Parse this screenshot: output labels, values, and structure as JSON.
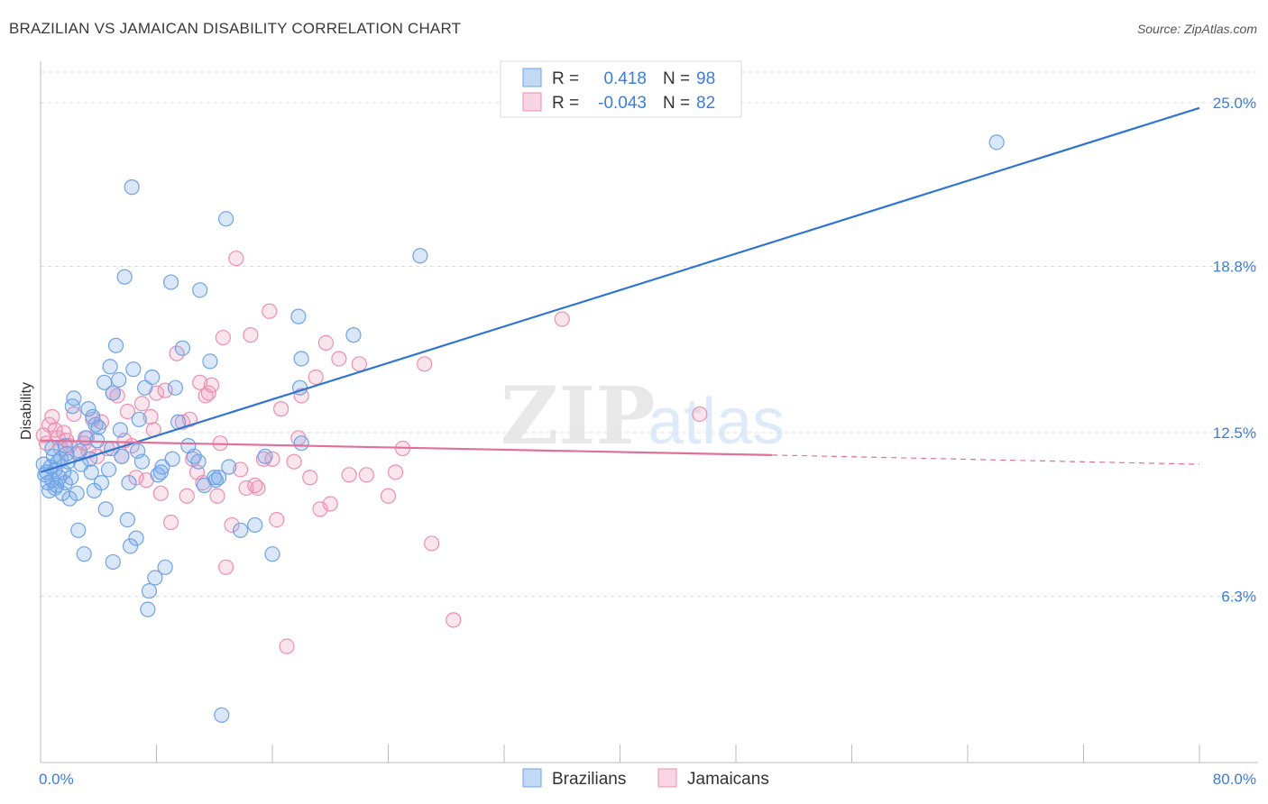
{
  "title": "BRAZILIAN VS JAMAICAN DISABILITY CORRELATION CHART",
  "source": "Source: ZipAtlas.com",
  "watermark": {
    "zip": "ZIP",
    "atlas": "atlas"
  },
  "colors": {
    "brazilians": "#6fa3e6",
    "brazilians_fill": "rgba(120,170,235,0.28)",
    "brazilians_line": "#2f74d0",
    "jamaicans": "#ec8fb0",
    "jamaicans_fill": "rgba(240,150,185,0.25)",
    "jamaicans_line": "#e0709a",
    "tick_text": "#3b7dd8",
    "grid": "#dddddd"
  },
  "legend": {
    "rows": [
      {
        "r_label": "R =",
        "r_value": "0.418",
        "n_label": "N =",
        "n_value": "98"
      },
      {
        "r_label": "R =",
        "r_value": "-0.043",
        "n_label": "N =",
        "n_value": "82"
      }
    ],
    "bottom": [
      "Brazilians",
      "Jamaicans"
    ]
  },
  "chart_data": {
    "type": "scatter",
    "title": "BRAZILIAN VS JAMAICAN DISABILITY CORRELATION CHART",
    "ylabel": "Disability",
    "xlabel": "",
    "xlim": [
      0,
      80
    ],
    "ylim": [
      0,
      26.5
    ],
    "x_tick_labels": [
      "0.0%",
      "80.0%"
    ],
    "y_ticks": [
      6.3,
      12.5,
      18.8,
      25.0
    ],
    "y_tick_labels": [
      "6.3%",
      "12.5%",
      "18.8%",
      "25.0%"
    ],
    "grid": true,
    "legend_position": "top-center",
    "series": [
      {
        "name": "Brazilians",
        "r": 0.418,
        "n": 98,
        "trend": {
          "x": [
            0,
            80
          ],
          "y": [
            11.0,
            24.8
          ]
        },
        "points": [
          [
            0.2,
            11.3
          ],
          [
            0.3,
            10.9
          ],
          [
            0.4,
            11.0
          ],
          [
            0.5,
            10.6
          ],
          [
            0.6,
            10.3
          ],
          [
            0.7,
            11.2
          ],
          [
            0.8,
            10.7
          ],
          [
            0.9,
            11.6
          ],
          [
            1.0,
            11.1
          ],
          [
            1.1,
            10.5
          ],
          [
            1.2,
            11.4
          ],
          [
            1.3,
            10.8
          ],
          [
            1.4,
            11.5
          ],
          [
            1.5,
            10.2
          ],
          [
            1.6,
            11.0
          ],
          [
            1.7,
            10.6
          ],
          [
            1.8,
            11.7
          ],
          [
            1.9,
            11.4
          ],
          [
            2.0,
            10.0
          ],
          [
            2.2,
            13.5
          ],
          [
            2.3,
            13.8
          ],
          [
            2.5,
            10.2
          ],
          [
            2.6,
            8.8
          ],
          [
            2.8,
            11.3
          ],
          [
            3.0,
            7.9
          ],
          [
            3.1,
            12.3
          ],
          [
            3.3,
            13.4
          ],
          [
            3.4,
            11.5
          ],
          [
            3.6,
            13.1
          ],
          [
            3.7,
            10.3
          ],
          [
            3.8,
            12.8
          ],
          [
            4.0,
            12.7
          ],
          [
            4.2,
            10.6
          ],
          [
            4.4,
            14.4
          ],
          [
            4.5,
            9.6
          ],
          [
            4.7,
            11.1
          ],
          [
            4.8,
            15.0
          ],
          [
            5.0,
            14.0
          ],
          [
            5.2,
            15.8
          ],
          [
            5.4,
            14.5
          ],
          [
            5.6,
            11.6
          ],
          [
            5.8,
            18.4
          ],
          [
            6.0,
            9.2
          ],
          [
            6.1,
            10.6
          ],
          [
            6.3,
            21.8
          ],
          [
            6.4,
            14.9
          ],
          [
            6.6,
            8.5
          ],
          [
            6.8,
            13.0
          ],
          [
            7.0,
            11.4
          ],
          [
            7.2,
            14.2
          ],
          [
            7.4,
            5.8
          ],
          [
            7.5,
            6.5
          ],
          [
            7.7,
            14.6
          ],
          [
            7.9,
            7.0
          ],
          [
            8.1,
            10.9
          ],
          [
            8.3,
            11.0
          ],
          [
            8.6,
            7.4
          ],
          [
            9.0,
            18.2
          ],
          [
            9.3,
            14.2
          ],
          [
            9.5,
            12.9
          ],
          [
            9.8,
            15.7
          ],
          [
            10.2,
            12.0
          ],
          [
            10.6,
            11.6
          ],
          [
            11.0,
            17.9
          ],
          [
            11.3,
            10.5
          ],
          [
            11.7,
            15.2
          ],
          [
            12.0,
            10.8
          ],
          [
            12.3,
            10.8
          ],
          [
            12.8,
            20.6
          ],
          [
            12.5,
            1.8
          ],
          [
            13.0,
            11.2
          ],
          [
            13.8,
            8.8
          ],
          [
            14.8,
            9.0
          ],
          [
            15.5,
            11.6
          ],
          [
            16.0,
            7.9
          ],
          [
            17.8,
            16.9
          ],
          [
            17.9,
            14.2
          ],
          [
            18.0,
            12.1
          ],
          [
            18.0,
            15.3
          ],
          [
            21.6,
            16.2
          ],
          [
            26.2,
            19.2
          ],
          [
            66.0,
            23.5
          ],
          [
            1.0,
            10.4
          ],
          [
            2.1,
            10.8
          ],
          [
            3.5,
            11.0
          ],
          [
            4.9,
            11.9
          ],
          [
            6.7,
            11.8
          ],
          [
            8.4,
            11.2
          ],
          [
            1.7,
            12.0
          ],
          [
            2.7,
            11.8
          ],
          [
            5.5,
            12.6
          ],
          [
            0.8,
            11.9
          ],
          [
            3.9,
            12.2
          ],
          [
            12.1,
            10.7
          ],
          [
            9.1,
            11.5
          ],
          [
            10.9,
            11.4
          ],
          [
            6.2,
            8.2
          ],
          [
            5.0,
            7.6
          ]
        ]
      },
      {
        "name": "Jamaicans",
        "r": -0.043,
        "n": 82,
        "trend": {
          "x": [
            0,
            50.5
          ],
          "y": [
            12.2,
            11.65
          ]
        },
        "trend_dashed": {
          "x": [
            50.5,
            80
          ],
          "y": [
            11.65,
            11.3
          ]
        },
        "points": [
          [
            0.2,
            12.4
          ],
          [
            0.4,
            12.1
          ],
          [
            0.6,
            12.8
          ],
          [
            0.8,
            13.1
          ],
          [
            1.0,
            12.6
          ],
          [
            1.2,
            12.3
          ],
          [
            1.4,
            11.9
          ],
          [
            1.6,
            12.5
          ],
          [
            1.8,
            12.2
          ],
          [
            2.0,
            12.0
          ],
          [
            2.3,
            13.2
          ],
          [
            2.6,
            11.7
          ],
          [
            3.0,
            12.1
          ],
          [
            3.3,
            11.8
          ],
          [
            3.6,
            13.0
          ],
          [
            3.9,
            11.6
          ],
          [
            4.2,
            12.9
          ],
          [
            4.6,
            11.9
          ],
          [
            5.0,
            14.0
          ],
          [
            5.3,
            13.9
          ],
          [
            5.6,
            11.6
          ],
          [
            6.0,
            13.3
          ],
          [
            6.3,
            12.0
          ],
          [
            6.6,
            10.8
          ],
          [
            7.0,
            13.6
          ],
          [
            7.3,
            10.7
          ],
          [
            7.6,
            13.1
          ],
          [
            8.0,
            14.0
          ],
          [
            8.3,
            10.2
          ],
          [
            8.6,
            14.1
          ],
          [
            9.0,
            9.1
          ],
          [
            9.4,
            15.5
          ],
          [
            9.8,
            12.9
          ],
          [
            10.1,
            10.1
          ],
          [
            10.5,
            11.5
          ],
          [
            10.8,
            11.0
          ],
          [
            11.0,
            14.4
          ],
          [
            11.4,
            13.9
          ],
          [
            11.6,
            14.0
          ],
          [
            11.8,
            14.3
          ],
          [
            12.2,
            10.1
          ],
          [
            12.6,
            16.1
          ],
          [
            12.8,
            7.4
          ],
          [
            13.2,
            9.0
          ],
          [
            13.5,
            19.1
          ],
          [
            13.8,
            11.1
          ],
          [
            14.2,
            10.4
          ],
          [
            14.5,
            16.2
          ],
          [
            15.0,
            10.4
          ],
          [
            15.4,
            11.5
          ],
          [
            15.8,
            17.1
          ],
          [
            16.0,
            11.5
          ],
          [
            16.3,
            9.2
          ],
          [
            16.6,
            13.4
          ],
          [
            17.0,
            4.4
          ],
          [
            17.5,
            11.4
          ],
          [
            17.8,
            12.3
          ],
          [
            18.0,
            13.9
          ],
          [
            19.0,
            14.6
          ],
          [
            19.3,
            9.6
          ],
          [
            19.7,
            15.9
          ],
          [
            20.0,
            9.8
          ],
          [
            20.6,
            15.3
          ],
          [
            21.3,
            10.9
          ],
          [
            22.0,
            15.1
          ],
          [
            22.5,
            10.9
          ],
          [
            24.0,
            10.1
          ],
          [
            24.5,
            11.0
          ],
          [
            25.0,
            11.9
          ],
          [
            26.5,
            15.1
          ],
          [
            27.0,
            8.3
          ],
          [
            28.5,
            5.4
          ],
          [
            36.0,
            16.8
          ],
          [
            45.5,
            13.2
          ],
          [
            3.2,
            12.3
          ],
          [
            5.8,
            12.2
          ],
          [
            7.8,
            12.6
          ],
          [
            10.3,
            13.0
          ],
          [
            14.8,
            10.5
          ],
          [
            18.6,
            10.8
          ],
          [
            12.4,
            12.1
          ],
          [
            11.2,
            10.6
          ]
        ]
      }
    ]
  }
}
